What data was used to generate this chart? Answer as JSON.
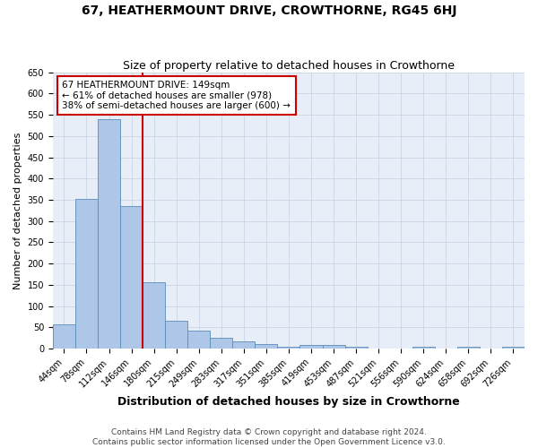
{
  "title": "67, HEATHERMOUNT DRIVE, CROWTHORNE, RG45 6HJ",
  "subtitle": "Size of property relative to detached houses in Crowthorne",
  "xlabel": "Distribution of detached houses by size in Crowthorne",
  "ylabel": "Number of detached properties",
  "categories": [
    "44sqm",
    "78sqm",
    "112sqm",
    "146sqm",
    "180sqm",
    "215sqm",
    "249sqm",
    "283sqm",
    "317sqm",
    "351sqm",
    "385sqm",
    "419sqm",
    "453sqm",
    "487sqm",
    "521sqm",
    "556sqm",
    "590sqm",
    "624sqm",
    "658sqm",
    "692sqm",
    "726sqm"
  ],
  "values": [
    57,
    352,
    540,
    335,
    156,
    66,
    42,
    25,
    16,
    10,
    5,
    9,
    9,
    4,
    0,
    0,
    5,
    0,
    5,
    0,
    5
  ],
  "bar_color": "#aec6e8",
  "bar_edge_color": "#5b8db8",
  "vline_index": 3.5,
  "annotation_text": "67 HEATHERMOUNT DRIVE: 149sqm\n← 61% of detached houses are smaller (978)\n38% of semi-detached houses are larger (600) →",
  "annotation_box_color": "#ffffff",
  "annotation_box_edge": "#cc0000",
  "vline_color": "#cc0000",
  "ylim": [
    0,
    650
  ],
  "yticks": [
    0,
    50,
    100,
    150,
    200,
    250,
    300,
    350,
    400,
    450,
    500,
    550,
    600,
    650
  ],
  "footer": "Contains HM Land Registry data © Crown copyright and database right 2024.\nContains public sector information licensed under the Open Government Licence v3.0.",
  "bg_color": "#e8eef8",
  "grid_color": "#c8d0e0",
  "title_fontsize": 10,
  "subtitle_fontsize": 9,
  "axis_label_fontsize": 8,
  "tick_fontsize": 7,
  "footer_fontsize": 6.5
}
